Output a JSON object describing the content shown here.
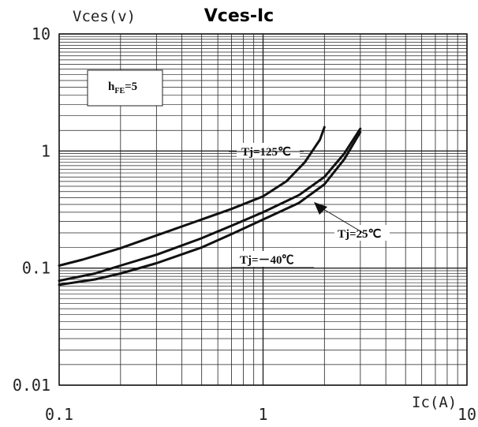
{
  "chart_data": {
    "type": "line",
    "title": "Vces-Ic",
    "ylabel": "Vces(v)",
    "xlabel": "Ic(A)",
    "x_scale": "log",
    "y_scale": "log",
    "xlim": [
      0.1,
      10
    ],
    "ylim": [
      0.01,
      10
    ],
    "x_ticks": [
      {
        "value": 0.1,
        "label": "0.1"
      },
      {
        "value": 1,
        "label": "1"
      },
      {
        "value": 10,
        "label": "10"
      }
    ],
    "y_ticks": [
      {
        "value": 10,
        "label": "10"
      },
      {
        "value": 1,
        "label": "1"
      },
      {
        "value": 0.1,
        "label": "0.1"
      },
      {
        "value": 0.01,
        "label": "0.01"
      }
    ],
    "grid": true,
    "annotation_box": {
      "main": "h",
      "sub": "FE",
      "rest": "=5"
    },
    "series": [
      {
        "name": "Tj=125℃",
        "x": [
          0.1,
          0.13,
          0.2,
          0.3,
          0.5,
          0.7,
          1.0,
          1.3,
          1.6,
          1.9,
          2.0
        ],
        "y": [
          0.105,
          0.118,
          0.148,
          0.19,
          0.26,
          0.32,
          0.41,
          0.55,
          0.8,
          1.25,
          1.6
        ]
      },
      {
        "name": "Tj=25℃",
        "x": [
          0.1,
          0.15,
          0.2,
          0.3,
          0.5,
          0.7,
          1.0,
          1.5,
          2.0,
          2.5,
          3.0
        ],
        "y": [
          0.078,
          0.09,
          0.105,
          0.13,
          0.18,
          0.23,
          0.3,
          0.42,
          0.6,
          0.95,
          1.55
        ]
      },
      {
        "name": "Tj=-40℃",
        "x": [
          0.1,
          0.15,
          0.2,
          0.3,
          0.5,
          0.7,
          1.0,
          1.5,
          2.0,
          2.5,
          3.0
        ],
        "y": [
          0.072,
          0.08,
          0.09,
          0.11,
          0.15,
          0.195,
          0.26,
          0.36,
          0.52,
          0.85,
          1.45
        ]
      }
    ],
    "labels": [
      "Tj=125℃",
      "Tj=25℃",
      "Tj=－40℃"
    ]
  }
}
